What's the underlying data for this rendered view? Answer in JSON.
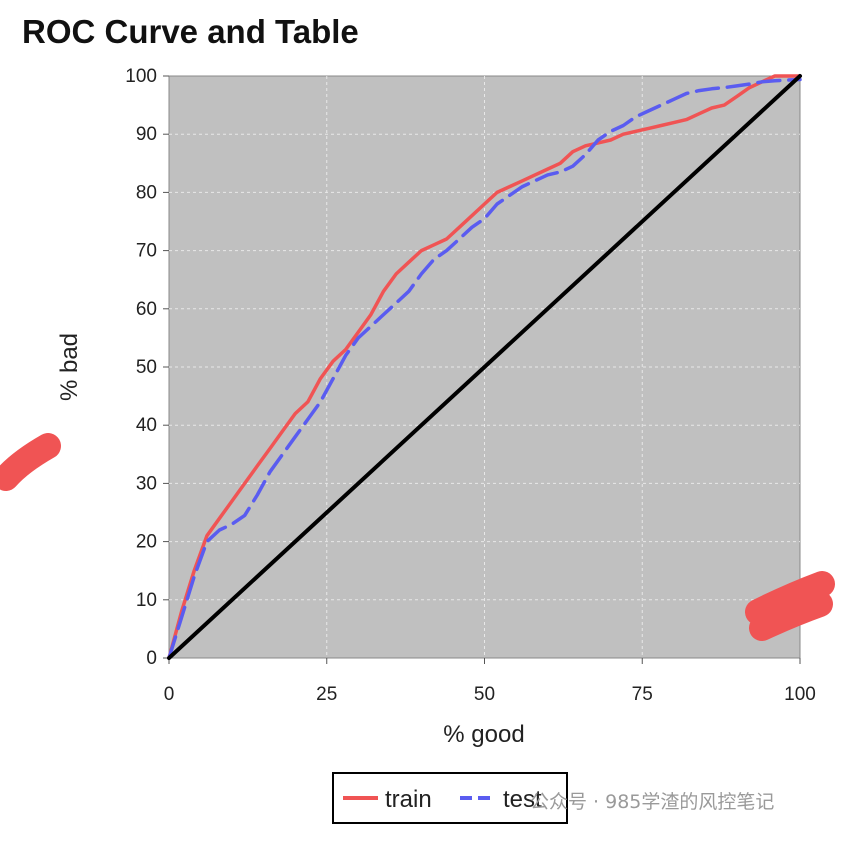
{
  "chart_data": {
    "type": "line",
    "title": "ROC Curve and Table",
    "xlabel": "% good",
    "ylabel": "% bad",
    "xlim": [
      0,
      100
    ],
    "ylim": [
      0,
      100
    ],
    "x_ticks": [
      "0",
      "25",
      "50",
      "75",
      "100"
    ],
    "y_ticks": [
      "0",
      "10",
      "20",
      "30",
      "40",
      "50",
      "60",
      "70",
      "80",
      "90",
      "100"
    ],
    "grid": true,
    "legend_position": "bottom-center",
    "series": [
      {
        "name": "train",
        "color": "#f05454",
        "style": "solid",
        "points": [
          [
            0,
            0
          ],
          [
            2,
            8
          ],
          [
            4,
            15
          ],
          [
            6,
            21
          ],
          [
            8,
            24
          ],
          [
            10,
            27
          ],
          [
            12,
            30
          ],
          [
            14,
            33
          ],
          [
            16,
            36
          ],
          [
            18,
            39
          ],
          [
            20,
            42
          ],
          [
            22,
            44
          ],
          [
            24,
            48
          ],
          [
            26,
            51
          ],
          [
            28,
            53
          ],
          [
            30,
            56
          ],
          [
            32,
            59
          ],
          [
            34,
            63
          ],
          [
            36,
            66
          ],
          [
            38,
            68
          ],
          [
            40,
            70
          ],
          [
            42,
            71
          ],
          [
            44,
            72
          ],
          [
            46,
            74
          ],
          [
            48,
            76
          ],
          [
            50,
            78
          ],
          [
            52,
            80
          ],
          [
            54,
            81
          ],
          [
            56,
            82
          ],
          [
            58,
            83
          ],
          [
            60,
            84
          ],
          [
            62,
            85
          ],
          [
            64,
            87
          ],
          [
            66,
            88
          ],
          [
            68,
            88.5
          ],
          [
            70,
            89
          ],
          [
            72,
            90
          ],
          [
            74,
            90.5
          ],
          [
            76,
            91
          ],
          [
            78,
            91.5
          ],
          [
            80,
            92
          ],
          [
            82,
            92.5
          ],
          [
            84,
            93.5
          ],
          [
            86,
            94.5
          ],
          [
            88,
            95
          ],
          [
            90,
            96.5
          ],
          [
            92,
            98
          ],
          [
            94,
            99
          ],
          [
            96,
            100
          ],
          [
            100,
            100
          ]
        ]
      },
      {
        "name": "test",
        "color": "#5a5cf0",
        "style": "dashed",
        "points": [
          [
            0,
            0
          ],
          [
            2,
            7
          ],
          [
            4,
            14
          ],
          [
            6,
            20
          ],
          [
            8,
            22
          ],
          [
            10,
            23
          ],
          [
            12,
            24.5
          ],
          [
            14,
            28
          ],
          [
            16,
            32
          ],
          [
            18,
            35
          ],
          [
            20,
            38
          ],
          [
            22,
            41
          ],
          [
            24,
            44
          ],
          [
            26,
            48
          ],
          [
            28,
            52
          ],
          [
            30,
            55
          ],
          [
            32,
            57
          ],
          [
            34,
            59
          ],
          [
            36,
            61
          ],
          [
            38,
            63
          ],
          [
            40,
            66
          ],
          [
            42,
            68.5
          ],
          [
            44,
            70
          ],
          [
            46,
            72
          ],
          [
            48,
            74
          ],
          [
            50,
            75.5
          ],
          [
            52,
            78
          ],
          [
            54,
            79.5
          ],
          [
            56,
            81
          ],
          [
            58,
            82
          ],
          [
            60,
            83
          ],
          [
            62,
            83.5
          ],
          [
            64,
            84.5
          ],
          [
            66,
            86.5
          ],
          [
            68,
            89
          ],
          [
            70,
            90.5
          ],
          [
            72,
            91.5
          ],
          [
            74,
            93
          ],
          [
            76,
            94
          ],
          [
            78,
            95
          ],
          [
            80,
            96
          ],
          [
            82,
            97
          ],
          [
            84,
            97.5
          ],
          [
            86,
            97.8
          ],
          [
            88,
            98
          ],
          [
            90,
            98.3
          ],
          [
            92,
            98.6
          ],
          [
            94,
            99
          ],
          [
            96,
            99.2
          ],
          [
            100,
            99.4
          ]
        ]
      },
      {
        "name": "",
        "color": "#000000",
        "style": "solid",
        "points": [
          [
            0,
            0
          ],
          [
            100,
            100
          ]
        ]
      }
    ]
  },
  "legend": {
    "items": [
      {
        "label": "train",
        "color": "#f05454"
      },
      {
        "label": "test",
        "color": "#5a5cf0"
      }
    ]
  },
  "watermark": "公众号 · 985学渣的风控笔记",
  "colors": {
    "plot_background": "#c0c0c0",
    "grid": "#e8e8e8",
    "redaction": "#f05454"
  }
}
